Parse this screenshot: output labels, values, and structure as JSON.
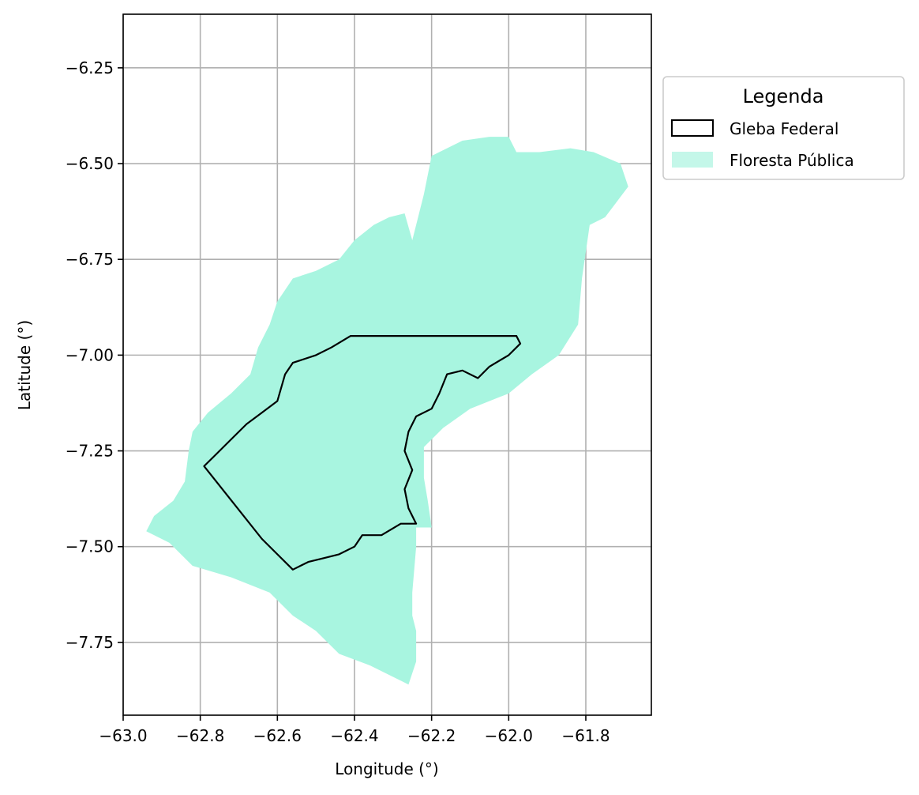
{
  "chart_data": {
    "type": "map",
    "xlabel": "Longitude (°)",
    "ylabel": "Latitude (°)",
    "xlim": [
      -63.0,
      -61.63
    ],
    "ylim": [
      -7.94,
      -6.11
    ],
    "xticks": [
      -63.0,
      -62.8,
      -62.6,
      -62.4,
      -62.2,
      -62.0,
      -61.8
    ],
    "xtick_labels": [
      "−63.0",
      "−62.8",
      "−62.6",
      "−62.4",
      "−62.2",
      "−62.0",
      "−61.8"
    ],
    "yticks": [
      -6.25,
      -6.5,
      -6.75,
      -7.0,
      -7.25,
      -7.5,
      -7.75
    ],
    "ytick_labels": [
      "−6.25",
      "−6.50",
      "−6.75",
      "−7.00",
      "−7.25",
      "−7.50",
      "−7.75"
    ],
    "grid": true,
    "legend": {
      "title": "Legenda",
      "placement": "outside-right-top",
      "entries": [
        {
          "label": "Gleba Federal",
          "style": "outline",
          "color": "#000000"
        },
        {
          "label": "Floresta Pública",
          "style": "fill",
          "color": "#a8f5e0"
        }
      ]
    },
    "layers": [
      {
        "name": "Floresta Pública",
        "fill": "#a8f5e0",
        "polygon": [
          [
            -62.25,
            -6.7
          ],
          [
            -62.22,
            -6.58
          ],
          [
            -62.2,
            -6.48
          ],
          [
            -62.12,
            -6.44
          ],
          [
            -62.05,
            -6.43
          ],
          [
            -62.0,
            -6.43
          ],
          [
            -61.98,
            -6.47
          ],
          [
            -61.92,
            -6.47
          ],
          [
            -61.84,
            -6.46
          ],
          [
            -61.78,
            -6.47
          ],
          [
            -61.71,
            -6.5
          ],
          [
            -61.69,
            -6.56
          ],
          [
            -61.72,
            -6.6
          ],
          [
            -61.75,
            -6.64
          ],
          [
            -61.79,
            -6.66
          ],
          [
            -61.81,
            -6.8
          ],
          [
            -61.82,
            -6.92
          ],
          [
            -61.87,
            -7.0
          ],
          [
            -61.94,
            -7.05
          ],
          [
            -62.0,
            -7.1
          ],
          [
            -62.1,
            -7.14
          ],
          [
            -62.17,
            -7.19
          ],
          [
            -62.22,
            -7.24
          ],
          [
            -62.22,
            -7.32
          ],
          [
            -62.21,
            -7.38
          ],
          [
            -62.2,
            -7.45
          ],
          [
            -62.24,
            -7.45
          ],
          [
            -62.24,
            -7.5
          ],
          [
            -62.25,
            -7.62
          ],
          [
            -62.25,
            -7.68
          ],
          [
            -62.24,
            -7.72
          ],
          [
            -62.24,
            -7.8
          ],
          [
            -62.26,
            -7.86
          ],
          [
            -62.3,
            -7.84
          ],
          [
            -62.36,
            -7.81
          ],
          [
            -62.44,
            -7.78
          ],
          [
            -62.5,
            -7.72
          ],
          [
            -62.56,
            -7.68
          ],
          [
            -62.62,
            -7.62
          ],
          [
            -62.72,
            -7.58
          ],
          [
            -62.82,
            -7.55
          ],
          [
            -62.88,
            -7.49
          ],
          [
            -62.94,
            -7.46
          ],
          [
            -62.92,
            -7.42
          ],
          [
            -62.87,
            -7.38
          ],
          [
            -62.84,
            -7.33
          ],
          [
            -62.83,
            -7.25
          ],
          [
            -62.82,
            -7.2
          ],
          [
            -62.78,
            -7.15
          ],
          [
            -62.72,
            -7.1
          ],
          [
            -62.67,
            -7.05
          ],
          [
            -62.65,
            -6.98
          ],
          [
            -62.62,
            -6.92
          ],
          [
            -62.6,
            -6.86
          ],
          [
            -62.56,
            -6.8
          ],
          [
            -62.5,
            -6.78
          ],
          [
            -62.44,
            -6.75
          ],
          [
            -62.4,
            -6.7
          ],
          [
            -62.35,
            -6.66
          ],
          [
            -62.31,
            -6.64
          ],
          [
            -62.27,
            -6.63
          ]
        ]
      },
      {
        "name": "Gleba Federal",
        "stroke": "#000000",
        "polygon": [
          [
            -62.41,
            -6.95
          ],
          [
            -62.3,
            -6.95
          ],
          [
            -62.2,
            -6.95
          ],
          [
            -62.1,
            -6.95
          ],
          [
            -61.98,
            -6.95
          ],
          [
            -61.97,
            -6.97
          ],
          [
            -62.0,
            -7.0
          ],
          [
            -62.05,
            -7.03
          ],
          [
            -62.08,
            -7.06
          ],
          [
            -62.12,
            -7.04
          ],
          [
            -62.16,
            -7.05
          ],
          [
            -62.18,
            -7.1
          ],
          [
            -62.2,
            -7.14
          ],
          [
            -62.24,
            -7.16
          ],
          [
            -62.26,
            -7.2
          ],
          [
            -62.27,
            -7.25
          ],
          [
            -62.25,
            -7.3
          ],
          [
            -62.27,
            -7.35
          ],
          [
            -62.26,
            -7.4
          ],
          [
            -62.24,
            -7.44
          ],
          [
            -62.28,
            -7.44
          ],
          [
            -62.33,
            -7.47
          ],
          [
            -62.38,
            -7.47
          ],
          [
            -62.4,
            -7.5
          ],
          [
            -62.44,
            -7.52
          ],
          [
            -62.48,
            -7.53
          ],
          [
            -62.52,
            -7.54
          ],
          [
            -62.56,
            -7.56
          ],
          [
            -62.6,
            -7.52
          ],
          [
            -62.64,
            -7.48
          ],
          [
            -62.79,
            -7.29
          ],
          [
            -62.76,
            -7.26
          ],
          [
            -62.72,
            -7.22
          ],
          [
            -62.68,
            -7.18
          ],
          [
            -62.64,
            -7.15
          ],
          [
            -62.6,
            -7.12
          ],
          [
            -62.58,
            -7.05
          ],
          [
            -62.56,
            -7.02
          ],
          [
            -62.5,
            -7.0
          ],
          [
            -62.46,
            -6.98
          ]
        ]
      }
    ]
  }
}
